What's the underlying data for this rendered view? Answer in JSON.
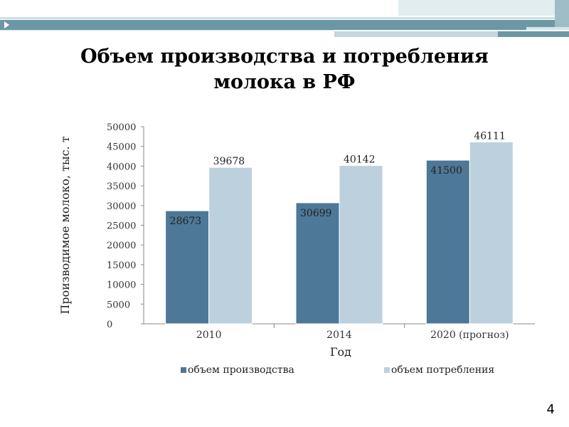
{
  "slide": {
    "title_line1": "Объем производства и потребления",
    "title_line2": "молока в РФ",
    "page_number": "4"
  },
  "colors": {
    "production": "#4d7897",
    "consumption": "#bdd0dd"
  },
  "chart_data": {
    "type": "bar",
    "categories": [
      "2010",
      "2014",
      "2020 (прогноз)"
    ],
    "series": [
      {
        "name": "объем производства",
        "values": [
          28673,
          30699,
          41500
        ]
      },
      {
        "name": "объем потребления",
        "values": [
          39678,
          40142,
          46111
        ]
      }
    ],
    "xlabel": "Год",
    "ylabel": "Производимое молоко, тыс. т",
    "ylim": [
      0,
      50000
    ],
    "yticks": [
      0,
      5000,
      10000,
      15000,
      20000,
      25000,
      30000,
      35000,
      40000,
      45000,
      50000
    ],
    "grid": false,
    "legend": "bottom"
  }
}
